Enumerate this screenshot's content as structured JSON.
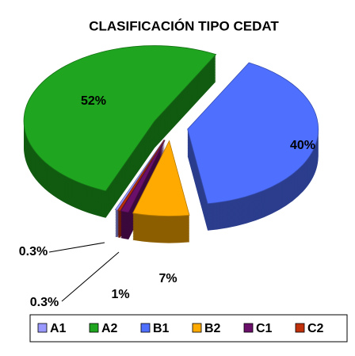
{
  "chart_data": {
    "type": "pie3d",
    "title": "CLASIFICACIÓN TIPO CEDAT",
    "categories": [
      "A1",
      "A2",
      "B1",
      "B2",
      "C1",
      "C2"
    ],
    "values": [
      0.3,
      52,
      40,
      7,
      1,
      0.3
    ],
    "value_labels": [
      "0.3%",
      "52%",
      "40%",
      "7%",
      "1%",
      "0.3%"
    ],
    "colors": [
      "#9999ff",
      "#1fa51f",
      "#4f6fff",
      "#ffaa00",
      "#6a0f6a",
      "#c0300a"
    ],
    "legend": "bottom"
  }
}
